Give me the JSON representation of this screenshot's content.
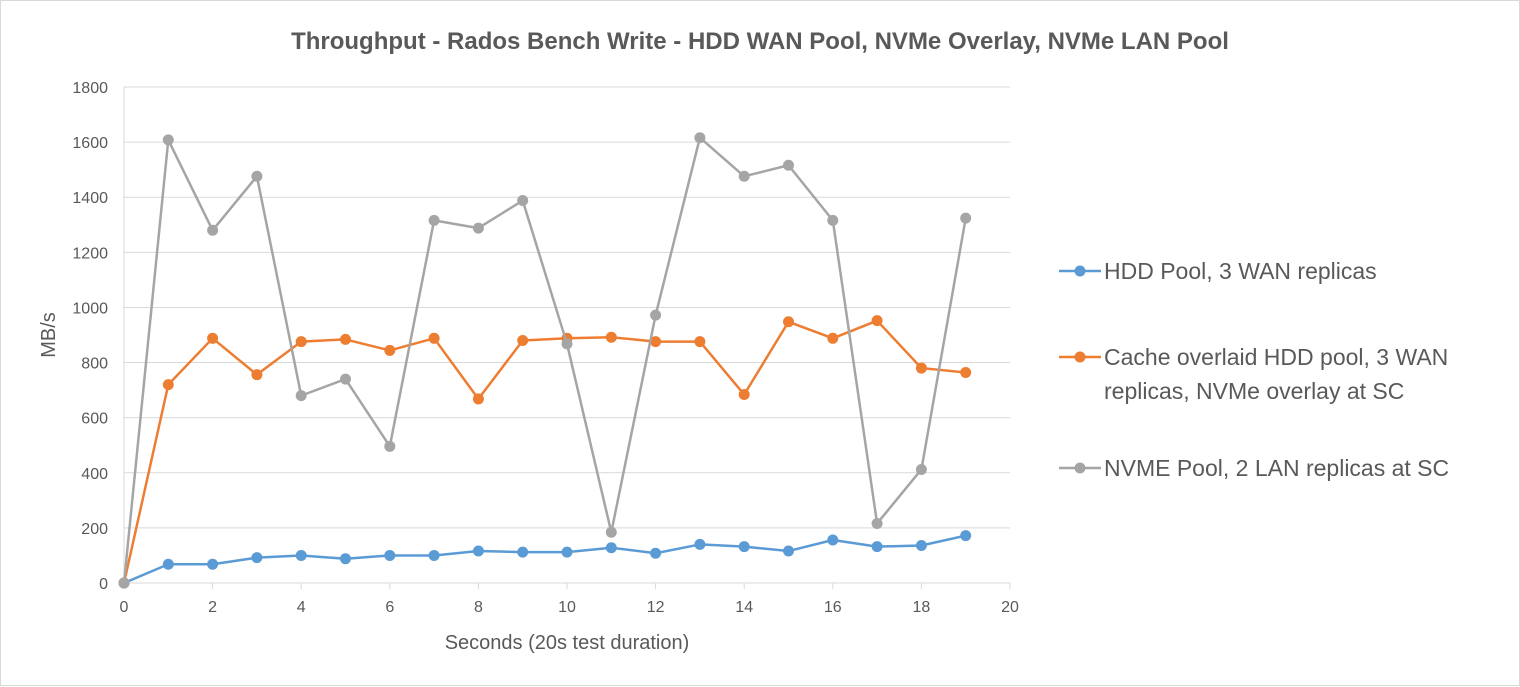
{
  "chart_data": {
    "type": "line",
    "title": "Throughput - Rados Bench Write - HDD WAN Pool, NVMe Overlay, NVMe LAN Pool",
    "xlabel": "Seconds (20s test duration)",
    "ylabel": "MB/s",
    "xlim": [
      0,
      20
    ],
    "ylim": [
      0,
      1800
    ],
    "x_ticks": [
      "0",
      "2",
      "4",
      "6",
      "8",
      "10",
      "12",
      "14",
      "16",
      "18",
      "20"
    ],
    "y_ticks": [
      "0",
      "200",
      "400",
      "600",
      "800",
      "1000",
      "1200",
      "1400",
      "1600",
      "1800"
    ],
    "grid": "horizontal",
    "legend_position": "right",
    "x": [
      0,
      1,
      2,
      3,
      4,
      5,
      6,
      7,
      8,
      9,
      10,
      11,
      12,
      13,
      14,
      15,
      16,
      17,
      18,
      19
    ],
    "series": [
      {
        "name": "HDD Pool, 3 WAN replicas",
        "legend_lines": [
          "HDD Pool, 3 WAN replicas"
        ],
        "color": "#5b9bd5",
        "values": [
          0,
          68,
          68,
          92,
          100,
          88,
          100,
          100,
          116,
          112,
          112,
          128,
          108,
          140,
          132,
          116,
          156,
          132,
          136,
          172
        ]
      },
      {
        "name": "Cache overlaid HDD pool, 3 WAN replicas, NVMe overlay at SC",
        "legend_lines": [
          "Cache overlaid HDD pool, 3 WAN",
          "replicas, NVMe overlay at SC"
        ],
        "color": "#ed7d31",
        "values": [
          0,
          720,
          888,
          756,
          876,
          884,
          844,
          888,
          668,
          880,
          888,
          892,
          876,
          876,
          684,
          948,
          888,
          952,
          780,
          764
        ]
      },
      {
        "name": "NVME Pool, 2 LAN replicas at SC",
        "legend_lines": [
          "NVME Pool, 2 LAN replicas at SC"
        ],
        "color": "#a5a5a5",
        "values": [
          0,
          1608,
          1280,
          1476,
          680,
          740,
          496,
          1316,
          1288,
          1388,
          868,
          184,
          972,
          1616,
          1476,
          1516,
          1316,
          216,
          412,
          1324
        ]
      }
    ]
  }
}
